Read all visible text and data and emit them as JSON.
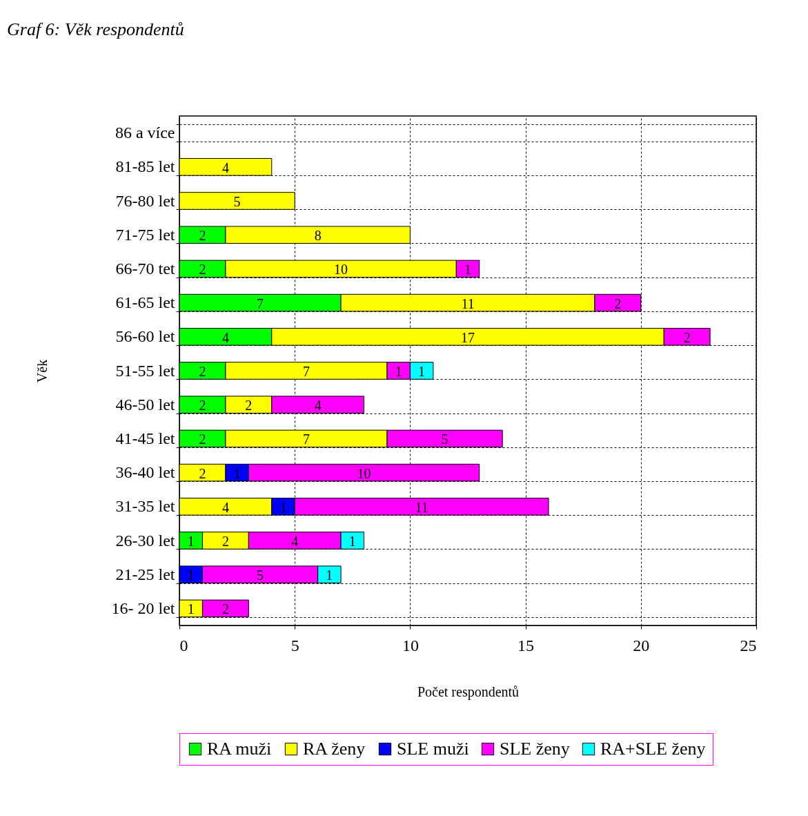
{
  "chart_data": {
    "type": "bar",
    "orientation": "horizontal",
    "stacked": true,
    "title": "Graf 6: Věk respondentů",
    "xlabel": "Počet respondentů",
    "ylabel": "Věk",
    "categories": [
      "86 a více",
      "81-85 let",
      "76-80 let",
      "71-75 let",
      "66-70 tet",
      "61-65 let",
      "56-60 let",
      "51-55 let",
      "46-50 let",
      "41-45 let",
      "36-40 let",
      "31-35 let",
      "26-30 let",
      "21-25 let",
      "16- 20 let"
    ],
    "series": [
      {
        "name": "RA muži",
        "color": "#00ff00",
        "values": [
          null,
          null,
          null,
          2,
          2,
          7,
          4,
          2,
          2,
          2,
          null,
          null,
          1,
          null,
          null
        ]
      },
      {
        "name": "RA ženy",
        "color": "#ffff00",
        "values": [
          null,
          4,
          5,
          8,
          10,
          11,
          17,
          7,
          2,
          7,
          2,
          4,
          2,
          null,
          1
        ]
      },
      {
        "name": "SLE muži",
        "color": "#0000ff",
        "values": [
          null,
          null,
          null,
          null,
          null,
          null,
          null,
          null,
          null,
          null,
          1,
          1,
          null,
          1,
          null
        ]
      },
      {
        "name": "SLE ženy",
        "color": "#ff00ff",
        "values": [
          null,
          null,
          null,
          null,
          1,
          2,
          2,
          1,
          4,
          5,
          10,
          11,
          4,
          5,
          2
        ]
      },
      {
        "name": "RA+SLE ženy",
        "color": "#00ffff",
        "values": [
          null,
          null,
          null,
          null,
          null,
          null,
          null,
          1,
          null,
          null,
          null,
          null,
          1,
          1,
          null
        ]
      }
    ],
    "xlim": [
      0,
      25
    ],
    "xticks": [
      0,
      5,
      10,
      15,
      20,
      25
    ],
    "grid": true,
    "legend": "bottom",
    "data_labels": true
  }
}
